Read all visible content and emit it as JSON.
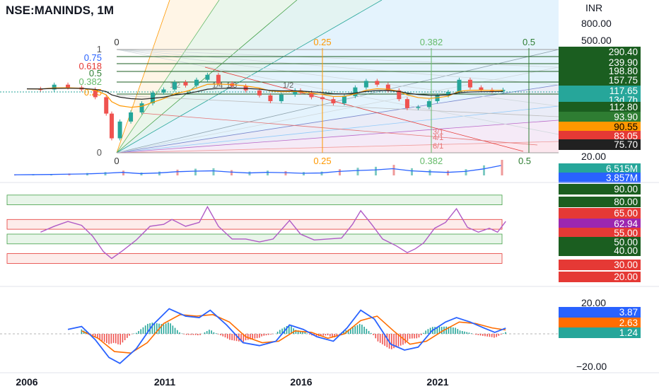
{
  "header": {
    "symbol": "NSE:MANINDS, 1M",
    "currency": "INR"
  },
  "colors": {
    "up": "#26a69a",
    "down": "#ef5350",
    "ema_orange": "#ff9800",
    "ema_black": "#222222",
    "volume_ma": "#2962ff",
    "rsi": "#b05ac6",
    "macd": "#2962ff",
    "signal": "#ff6d00"
  },
  "main_axis": {
    "type": "log",
    "ticks": [
      "800.00",
      "500.00",
      "20.00"
    ]
  },
  "price_labels": [
    {
      "text": "290.40",
      "bg": "#1b5e20",
      "fg": "#ffffff"
    },
    {
      "text": "239.90",
      "bg": "#1b5e20",
      "fg": "#ffffff"
    },
    {
      "text": "198.80",
      "bg": "#1b5e20",
      "fg": "#ffffff"
    },
    {
      "text": "157.75",
      "bg": "#1b5e20",
      "fg": "#ffffff"
    },
    {
      "text": "117.65",
      "bg": "#26a69a",
      "fg": "#ffffff"
    },
    {
      "text": "13d 7h",
      "bg": "#26a69a",
      "fg": "#ffffff"
    },
    {
      "text": "112.80",
      "bg": "#1b5e20",
      "fg": "#ffffff"
    },
    {
      "text": "93.90",
      "bg": "#2e7d32",
      "fg": "#ffffff"
    },
    {
      "text": "90.55",
      "bg": "#ff9800",
      "fg": "#000000"
    },
    {
      "text": "83.05",
      "bg": "#e53935",
      "fg": "#ffffff"
    },
    {
      "text": "75.70",
      "bg": "#212121",
      "fg": "#ffffff"
    }
  ],
  "fib_levels_left": [
    {
      "text": "1",
      "color": "#555555"
    },
    {
      "text": "0.75",
      "color": "#2962ff"
    },
    {
      "text": "0.618",
      "color": "#e53935"
    },
    {
      "text": "0.5",
      "color": "#2e7d32"
    },
    {
      "text": "0.382",
      "color": "#66bb6a"
    },
    {
      "text": "0.25",
      "color": "#ff9800"
    },
    {
      "text": "0",
      "color": "#555555"
    }
  ],
  "fib_time_top": [
    {
      "text": "0",
      "color": "#333333"
    },
    {
      "text": "0.25",
      "color": "#ff9800"
    },
    {
      "text": "0.382",
      "color": "#66bb6a"
    },
    {
      "text": "0.5",
      "color": "#2e7d32"
    }
  ],
  "fan_labels": [
    "1/2",
    "1/4",
    "1/3",
    "1/2",
    "3/1",
    "4/1",
    "6/1"
  ],
  "volume_labels": [
    {
      "text": "6.515M",
      "bg": "#26a69a",
      "fg": "#ffffff"
    },
    {
      "text": "3.857M",
      "bg": "#2962ff",
      "fg": "#ffffff"
    }
  ],
  "rsi_labels": [
    {
      "text": "90.00",
      "bg": "#1b5e20",
      "fg": "#ffffff"
    },
    {
      "text": "80.00",
      "bg": "#1b5e20",
      "fg": "#ffffff"
    },
    {
      "text": "65.00",
      "bg": "#e53935",
      "fg": "#ffffff"
    },
    {
      "text": "62.94",
      "bg": "#9c27b0",
      "fg": "#ffffff"
    },
    {
      "text": "55.00",
      "bg": "#e53935",
      "fg": "#ffffff"
    },
    {
      "text": "50.00",
      "bg": "#1b5e20",
      "fg": "#ffffff"
    },
    {
      "text": "40.00",
      "bg": "#1b5e20",
      "fg": "#ffffff"
    },
    {
      "text": "30.00",
      "bg": "#e53935",
      "fg": "#ffffff"
    },
    {
      "text": "20.00",
      "bg": "#e53935",
      "fg": "#ffffff"
    }
  ],
  "macd_axis": {
    "ticks": [
      "20.00",
      "−20.00"
    ]
  },
  "macd_labels": [
    {
      "text": "3.87",
      "bg": "#2962ff",
      "fg": "#ffffff"
    },
    {
      "text": "2.63",
      "bg": "#ff6d00",
      "fg": "#ffffff"
    },
    {
      "text": "1.24",
      "bg": "#26a69a",
      "fg": "#ffffff"
    }
  ],
  "x_axis": {
    "labels": [
      "2006",
      "2011",
      "2016",
      "2021"
    ]
  },
  "chart_data": [
    {
      "type": "line",
      "panel": "price",
      "scale": "log",
      "series": [
        {
          "values": [
            [
              2006.0,
              120
            ],
            [
              2006.5,
              118
            ],
            [
              2007.0,
              135
            ],
            [
              2007.5,
              125
            ],
            [
              2008.0,
              118
            ],
            [
              2008.5,
              95
            ],
            [
              2008.9,
              60
            ],
            [
              2009.1,
              30
            ],
            [
              2009.4,
              48
            ],
            [
              2009.8,
              62
            ],
            [
              2010.2,
              80
            ],
            [
              2010.6,
              108
            ],
            [
              2011.0,
              118
            ],
            [
              2011.4,
              145
            ],
            [
              2011.8,
              132
            ],
            [
              2012.2,
              155
            ],
            [
              2012.6,
              178
            ],
            [
              2013.0,
              140
            ],
            [
              2013.5,
              130
            ],
            [
              2014.0,
              115
            ],
            [
              2014.5,
              100
            ],
            [
              2014.9,
              85
            ],
            [
              2015.3,
              102
            ],
            [
              2015.8,
              115
            ],
            [
              2016.0,
              108
            ],
            [
              2016.4,
              95
            ],
            [
              2016.8,
              90
            ],
            [
              2017.2,
              80
            ],
            [
              2017.6,
              98
            ],
            [
              2018.0,
              125
            ],
            [
              2018.4,
              150
            ],
            [
              2018.8,
              135
            ],
            [
              2019.2,
              115
            ],
            [
              2019.6,
              90
            ],
            [
              2019.9,
              70
            ],
            [
              2020.3,
              72
            ],
            [
              2020.7,
              85
            ],
            [
              2021.0,
              100
            ],
            [
              2021.4,
              110
            ],
            [
              2021.8,
              155
            ],
            [
              2022.2,
              125
            ],
            [
              2022.6,
              117
            ],
            [
              2023.0,
              113
            ],
            [
              2023.4,
              117
            ]
          ]
        }
      ],
      "ylim": [
        20,
        800
      ]
    },
    {
      "type": "bar",
      "panel": "volume",
      "series": [
        {
          "values": [
            0.4,
            0.5,
            0.6,
            0.8,
            1.0,
            1.4,
            2.0,
            1.2,
            1.6,
            2.4,
            2.8,
            3.0,
            2.2,
            1.6,
            2.0,
            1.8,
            1.4,
            1.6,
            2.6,
            3.2,
            3.6,
            4.4,
            3.0,
            2.4,
            2.0,
            2.6,
            4.2,
            6.5
          ]
        }
      ]
    },
    {
      "type": "line",
      "panel": "rsi",
      "series": [
        {
          "values": [
            [
              2006.5,
              52
            ],
            [
              2007.0,
              58
            ],
            [
              2007.5,
              63
            ],
            [
              2008.0,
              59
            ],
            [
              2008.4,
              48
            ],
            [
              2008.8,
              32
            ],
            [
              2009.1,
              25
            ],
            [
              2009.5,
              33
            ],
            [
              2010.0,
              44
            ],
            [
              2010.5,
              58
            ],
            [
              2011.0,
              60
            ],
            [
              2011.3,
              65
            ],
            [
              2011.8,
              58
            ],
            [
              2012.3,
              62
            ],
            [
              2012.6,
              78
            ],
            [
              2013.0,
              58
            ],
            [
              2013.5,
              45
            ],
            [
              2014.0,
              45
            ],
            [
              2014.5,
              42
            ],
            [
              2015.0,
              45
            ],
            [
              2015.6,
              64
            ],
            [
              2016.0,
              50
            ],
            [
              2016.5,
              44
            ],
            [
              2017.0,
              45
            ],
            [
              2017.5,
              46
            ],
            [
              2017.9,
              60
            ],
            [
              2018.2,
              74
            ],
            [
              2018.6,
              60
            ],
            [
              2019.0,
              45
            ],
            [
              2019.5,
              38
            ],
            [
              2019.9,
              31
            ],
            [
              2020.2,
              35
            ],
            [
              2020.5,
              41
            ],
            [
              2020.9,
              56
            ],
            [
              2021.3,
              62
            ],
            [
              2021.7,
              76
            ],
            [
              2022.1,
              57
            ],
            [
              2022.5,
              52
            ],
            [
              2022.9,
              56
            ],
            [
              2023.2,
              52
            ],
            [
              2023.5,
              63
            ]
          ]
        }
      ],
      "ylim": [
        0,
        100
      ]
    },
    {
      "type": "line",
      "panel": "macd",
      "series": [
        {
          "values": [
            [
              2007.5,
              3
            ],
            [
              2008.0,
              5
            ],
            [
              2008.5,
              -4
            ],
            [
              2009.0,
              -16
            ],
            [
              2009.4,
              -20
            ],
            [
              2010.0,
              -10
            ],
            [
              2010.6,
              6
            ],
            [
              2011.2,
              17
            ],
            [
              2011.8,
              12
            ],
            [
              2012.3,
              11
            ],
            [
              2012.7,
              16
            ],
            [
              2013.3,
              6
            ],
            [
              2013.9,
              -6
            ],
            [
              2014.5,
              -8
            ],
            [
              2015.1,
              -5
            ],
            [
              2015.6,
              6
            ],
            [
              2016.1,
              3
            ],
            [
              2016.6,
              -2
            ],
            [
              2017.2,
              -5
            ],
            [
              2017.7,
              4
            ],
            [
              2018.2,
              16
            ],
            [
              2018.7,
              10
            ],
            [
              2019.3,
              -7
            ],
            [
              2019.8,
              -11
            ],
            [
              2020.3,
              -9
            ],
            [
              2020.8,
              2
            ],
            [
              2021.3,
              8
            ],
            [
              2021.7,
              11
            ],
            [
              2022.2,
              8
            ],
            [
              2022.7,
              4
            ],
            [
              2023.1,
              1
            ],
            [
              2023.5,
              3.87
            ]
          ]
        },
        {
          "values": [
            [
              2008.0,
              2
            ],
            [
              2008.6,
              -3
            ],
            [
              2009.2,
              -12
            ],
            [
              2009.8,
              -13
            ],
            [
              2010.4,
              -6
            ],
            [
              2011.0,
              7
            ],
            [
              2011.6,
              13
            ],
            [
              2012.2,
              12
            ],
            [
              2012.8,
              13
            ],
            [
              2013.4,
              8
            ],
            [
              2014.0,
              -2
            ],
            [
              2014.6,
              -6
            ],
            [
              2015.2,
              -5
            ],
            [
              2015.8,
              2
            ],
            [
              2016.4,
              1
            ],
            [
              2017.0,
              -3
            ],
            [
              2017.6,
              0
            ],
            [
              2018.2,
              9
            ],
            [
              2018.8,
              12
            ],
            [
              2019.4,
              2
            ],
            [
              2020.0,
              -7
            ],
            [
              2020.6,
              -5
            ],
            [
              2021.2,
              2
            ],
            [
              2021.8,
              8
            ],
            [
              2022.4,
              7
            ],
            [
              2023.0,
              4
            ],
            [
              2023.5,
              2.63
            ]
          ]
        }
      ],
      "ylim": [
        -23,
        23
      ]
    }
  ]
}
